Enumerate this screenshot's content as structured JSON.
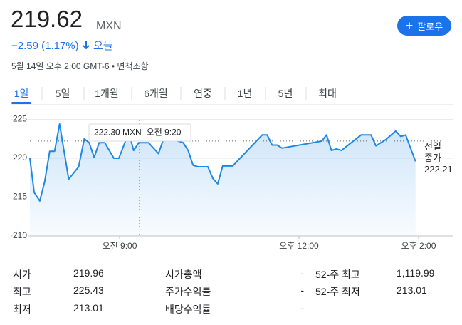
{
  "header": {
    "price": "219.62",
    "currency": "MXN",
    "change": "−2.59 (1.17%)",
    "period": "오늘",
    "timestamp": "5월 14일 오후 2:00 GMT-6",
    "disclaimer": "면책조항",
    "follow_button": "팔로우"
  },
  "tabs": [
    "1일",
    "5일",
    "1개월",
    "6개월",
    "연중",
    "1년",
    "5년",
    "최대"
  ],
  "selected_tab": 0,
  "chart_data": {
    "type": "line",
    "x": [
      7.5,
      7.571,
      7.665,
      7.748,
      7.831,
      7.913,
      7.996,
      8.149,
      8.315,
      8.409,
      8.492,
      8.575,
      8.657,
      8.752,
      8.905,
      8.988,
      9.153,
      9.236,
      9.319,
      9.484,
      9.65,
      9.732,
      9.898,
      10.063,
      10.146,
      10.228,
      10.311,
      10.476,
      10.559,
      10.642,
      10.724,
      10.89,
      11.386,
      11.468,
      11.551,
      11.634,
      11.717,
      12.378,
      12.461,
      12.543,
      12.626,
      12.709,
      12.874,
      13.04,
      13.205,
      13.287,
      13.453,
      13.618,
      13.701,
      13.783,
      13.949
    ],
    "series": [
      {
        "name": "MXN",
        "color": "#1e88e5",
        "values": [
          220.0,
          215.6,
          214.5,
          217.0,
          220.9,
          220.9,
          224.4,
          217.3,
          218.9,
          222.5,
          222.0,
          220.1,
          222.0,
          222.0,
          220.0,
          220.0,
          223.3,
          221.0,
          222.0,
          222.0,
          220.6,
          222.4,
          222.4,
          222.0,
          221.0,
          219.1,
          218.9,
          218.9,
          217.4,
          216.7,
          219.0,
          219.0,
          223.0,
          223.0,
          221.7,
          221.7,
          221.3,
          222.2,
          223.0,
          221.0,
          221.2,
          221.0,
          222.0,
          223.0,
          223.0,
          221.6,
          222.4,
          223.5,
          222.8,
          223.0,
          219.6
        ]
      }
    ],
    "xlim": [
      7.5,
      14.0
    ],
    "xticks": [
      {
        "value": 9,
        "label": "오전 9:00"
      },
      {
        "value": 12,
        "label": "오후 12:00"
      },
      {
        "value": 14,
        "label": "오후 2:00"
      }
    ],
    "ylim": [
      210,
      226
    ],
    "yticks": [
      210,
      215,
      220,
      225
    ],
    "grid": true,
    "area_fill": true,
    "previous_close": 222.21,
    "previous_close_label": "전일 종가",
    "tooltip": {
      "x": 9.333,
      "value": 222.3,
      "value_label": "222.30",
      "time": "오전 9:20"
    }
  },
  "stats": [
    [
      {
        "label": "시가",
        "value": "219.96"
      },
      {
        "label": "시가총액",
        "value": "-"
      },
      {
        "label": "52-주 최고",
        "value": "1,119.99"
      }
    ],
    [
      {
        "label": "최고",
        "value": "225.43"
      },
      {
        "label": "주가수익률",
        "value": "-"
      },
      {
        "label": "52-주 최저",
        "value": "213.01"
      }
    ],
    [
      {
        "label": "최저",
        "value": "213.01"
      },
      {
        "label": "배당수익률",
        "value": "-"
      }
    ]
  ]
}
